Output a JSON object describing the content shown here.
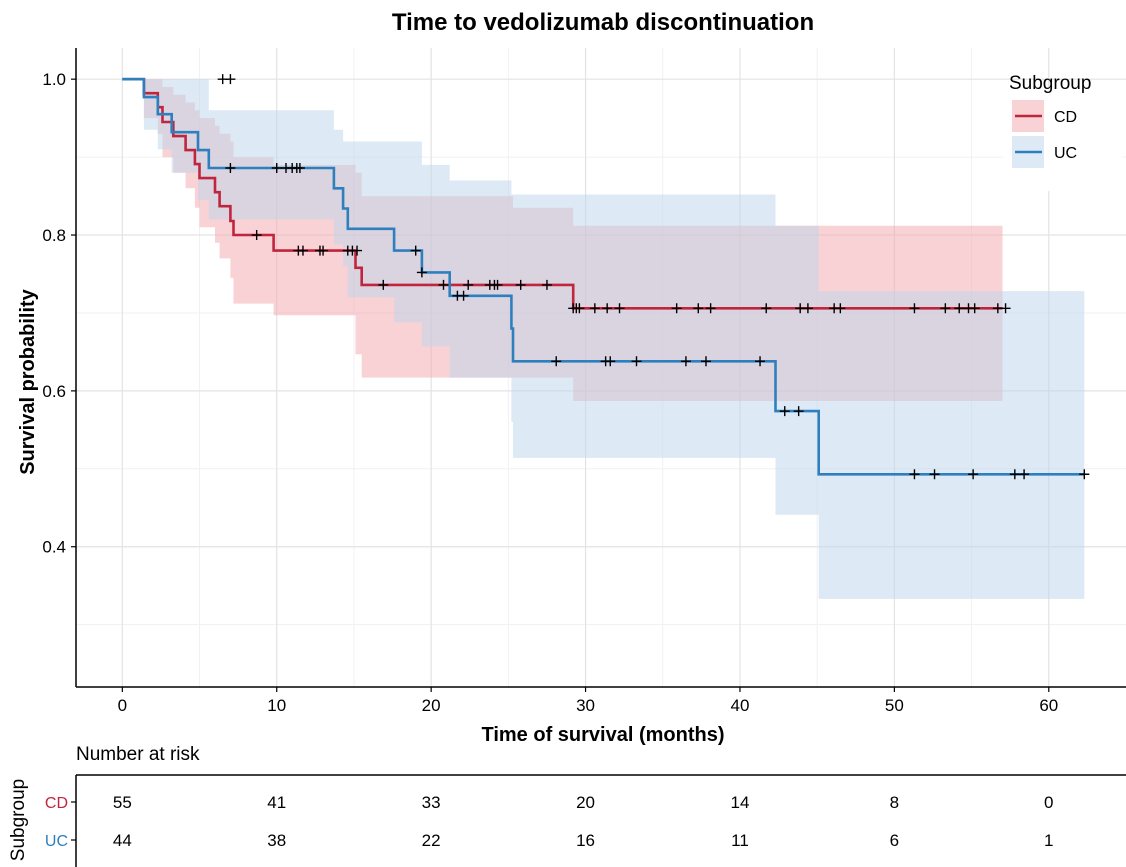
{
  "chart_data": {
    "type": "line",
    "subtype": "kaplan-meier survival curve with confidence bands and risk table",
    "title": "Time to vedolizumab discontinuation",
    "xlabel": "Time of survival (months)",
    "ylabel": "Survival probability",
    "xlim": [
      -3,
      65
    ],
    "ylim": [
      0.22,
      1.04
    ],
    "x_ticks": [
      0,
      10,
      20,
      30,
      40,
      50,
      60
    ],
    "y_ticks": [
      0.4,
      0.6,
      0.8,
      1.0
    ],
    "y_tick_labels": [
      "0.4",
      "0.6",
      "0.8",
      "1.0"
    ],
    "grid": true,
    "legend": {
      "title": "Subgroup",
      "position": "top-right"
    },
    "series": [
      {
        "name": "CD",
        "color": "#c0253e",
        "band_color": "#f4a6ad",
        "steps": [
          [
            0,
            1.0
          ],
          [
            1.4,
            1.0
          ],
          [
            1.4,
            0.982
          ],
          [
            2.3,
            0.964
          ],
          [
            2.6,
            0.945
          ],
          [
            3.3,
            0.927
          ],
          [
            4.1,
            0.909
          ],
          [
            4.7,
            0.891
          ],
          [
            5.0,
            0.873
          ],
          [
            6.0,
            0.855
          ],
          [
            6.3,
            0.837
          ],
          [
            7.0,
            0.818
          ],
          [
            7.2,
            0.8
          ],
          [
            9.8,
            0.8
          ],
          [
            9.8,
            0.78
          ],
          [
            15.1,
            0.78
          ],
          [
            15.1,
            0.758
          ],
          [
            15.5,
            0.736
          ],
          [
            29.2,
            0.736
          ],
          [
            29.2,
            0.706
          ],
          [
            57.0,
            0.706
          ]
        ],
        "upper": [
          [
            1.4,
            1.0
          ],
          [
            2.3,
            1.0
          ],
          [
            2.6,
            0.99
          ],
          [
            3.3,
            0.98
          ],
          [
            4.1,
            0.97
          ],
          [
            4.7,
            0.96
          ],
          [
            5.0,
            0.95
          ],
          [
            6.0,
            0.94
          ],
          [
            6.3,
            0.93
          ],
          [
            7.0,
            0.92
          ],
          [
            7.2,
            0.9
          ],
          [
            9.8,
            0.89
          ],
          [
            15.1,
            0.88
          ],
          [
            15.5,
            0.85
          ],
          [
            25.3,
            0.85
          ],
          [
            25.3,
            0.835
          ],
          [
            29.2,
            0.835
          ],
          [
            29.2,
            0.812
          ],
          [
            57.0,
            0.812
          ]
        ],
        "lower": [
          [
            1.4,
            0.95
          ],
          [
            2.3,
            0.93
          ],
          [
            2.6,
            0.9
          ],
          [
            3.3,
            0.88
          ],
          [
            4.1,
            0.86
          ],
          [
            4.7,
            0.835
          ],
          [
            5.0,
            0.81
          ],
          [
            6.0,
            0.79
          ],
          [
            6.3,
            0.77
          ],
          [
            7.0,
            0.745
          ],
          [
            7.2,
            0.712
          ],
          [
            9.8,
            0.697
          ],
          [
            15.1,
            0.647
          ],
          [
            15.5,
            0.617
          ],
          [
            29.2,
            0.617
          ],
          [
            29.2,
            0.587
          ],
          [
            57.0,
            0.587
          ]
        ],
        "censor_times": [
          6.5,
          7.0,
          8.7,
          11.4,
          11.7,
          12.8,
          13.0,
          14.6,
          14.9,
          15.2,
          16.9,
          20.8,
          22.4,
          23.8,
          24.1,
          24.3,
          25.8,
          27.5,
          29.2,
          29.4,
          29.6,
          30.6,
          31.4,
          32.2,
          35.9,
          37.3,
          38.1,
          41.7,
          43.9,
          44.4,
          46.1,
          46.5,
          51.3,
          53.3,
          54.2,
          54.8,
          55.2,
          56.7,
          57.2
        ],
        "censor_steps": [
          [
            0,
            1.0
          ],
          [
            7.2,
            0.8
          ],
          [
            9.8,
            0.78
          ],
          [
            15.1,
            0.78
          ],
          [
            15.5,
            0.736
          ],
          [
            29.2,
            0.706
          ]
        ]
      },
      {
        "name": "UC",
        "color": "#2e7fbd",
        "band_color": "#bcd6eb",
        "steps": [
          [
            0,
            1.0
          ],
          [
            1.4,
            1.0
          ],
          [
            1.4,
            0.977
          ],
          [
            2.3,
            0.955
          ],
          [
            3.2,
            0.932
          ],
          [
            4.9,
            0.909
          ],
          [
            5.6,
            0.886
          ],
          [
            13.7,
            0.886
          ],
          [
            13.7,
            0.86
          ],
          [
            14.3,
            0.834
          ],
          [
            14.6,
            0.808
          ],
          [
            17.6,
            0.808
          ],
          [
            17.6,
            0.78
          ],
          [
            18.3,
            0.78
          ],
          [
            19.4,
            0.752
          ],
          [
            21.2,
            0.752
          ],
          [
            21.2,
            0.722
          ],
          [
            25.2,
            0.722
          ],
          [
            25.2,
            0.68
          ],
          [
            25.3,
            0.638
          ],
          [
            42.3,
            0.638
          ],
          [
            42.3,
            0.574
          ],
          [
            45.1,
            0.574
          ],
          [
            45.1,
            0.493
          ],
          [
            62.3,
            0.493
          ]
        ],
        "upper": [
          [
            1.4,
            1.0
          ],
          [
            4.9,
            1.0
          ],
          [
            5.6,
            0.96
          ],
          [
            13.7,
            0.96
          ],
          [
            13.7,
            0.935
          ],
          [
            14.3,
            0.92
          ],
          [
            17.6,
            0.92
          ],
          [
            19.4,
            0.89
          ],
          [
            21.2,
            0.87
          ],
          [
            25.2,
            0.852
          ],
          [
            29.1,
            0.852
          ],
          [
            42.3,
            0.852
          ],
          [
            42.3,
            0.812
          ],
          [
            45.1,
            0.812
          ],
          [
            45.1,
            0.728
          ],
          [
            62.3,
            0.728
          ]
        ],
        "lower": [
          [
            1.4,
            0.935
          ],
          [
            2.3,
            0.91
          ],
          [
            3.2,
            0.88
          ],
          [
            4.9,
            0.845
          ],
          [
            5.6,
            0.82
          ],
          [
            13.7,
            0.82
          ],
          [
            13.7,
            0.788
          ],
          [
            14.3,
            0.76
          ],
          [
            14.6,
            0.72
          ],
          [
            17.6,
            0.72
          ],
          [
            17.6,
            0.688
          ],
          [
            19.4,
            0.657
          ],
          [
            21.2,
            0.617
          ],
          [
            25.2,
            0.617
          ],
          [
            25.2,
            0.56
          ],
          [
            25.3,
            0.514
          ],
          [
            42.3,
            0.514
          ],
          [
            42.3,
            0.441
          ],
          [
            45.1,
            0.441
          ],
          [
            45.1,
            0.333
          ],
          [
            62.3,
            0.333
          ]
        ],
        "censor_times": [
          7.0,
          10.0,
          10.6,
          11.0,
          11.3,
          11.5,
          19.0,
          19.4,
          21.7,
          22.1,
          28.1,
          31.3,
          31.6,
          33.3,
          36.5,
          37.8,
          41.3,
          42.9,
          43.8,
          51.3,
          52.6,
          55.1,
          57.8,
          58.4,
          62.3
        ],
        "censor_steps": [
          [
            0,
            1.0
          ],
          [
            5.6,
            0.886
          ],
          [
            13.7,
            0.86
          ],
          [
            17.6,
            0.78
          ],
          [
            19.4,
            0.752
          ],
          [
            21.2,
            0.722
          ],
          [
            25.3,
            0.638
          ],
          [
            42.3,
            0.574
          ],
          [
            45.1,
            0.493
          ]
        ]
      }
    ],
    "risk_table": {
      "title": "Number at risk",
      "ylabel": "Subgroup",
      "times": [
        0,
        10,
        20,
        30,
        40,
        50,
        60
      ],
      "rows": [
        {
          "name": "CD",
          "color": "#c0253e",
          "counts": [
            55,
            41,
            33,
            20,
            14,
            8,
            0
          ]
        },
        {
          "name": "UC",
          "color": "#2e7fbd",
          "counts": [
            44,
            38,
            22,
            16,
            11,
            6,
            1
          ]
        }
      ]
    }
  }
}
